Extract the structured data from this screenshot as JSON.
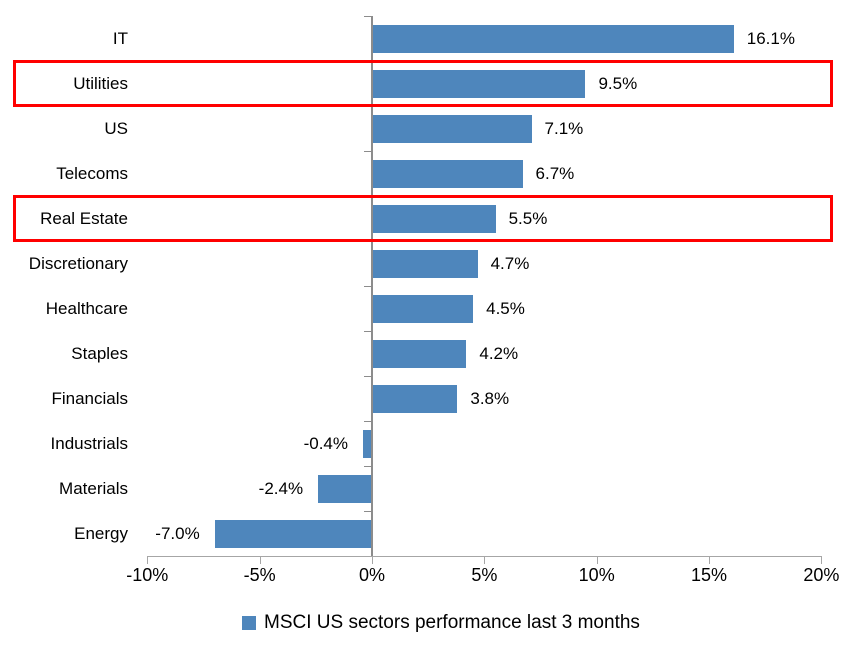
{
  "chart_data": {
    "type": "bar",
    "orientation": "horizontal",
    "title": "",
    "categories": [
      "IT",
      "Utilities",
      "US",
      "Telecoms",
      "Real Estate",
      "Discretionary",
      "Healthcare",
      "Staples",
      "Financials",
      "Industrials",
      "Materials",
      "Energy"
    ],
    "values": [
      16.1,
      9.5,
      7.1,
      6.7,
      5.5,
      4.7,
      4.5,
      4.2,
      3.8,
      -0.4,
      -2.4,
      -7.0
    ],
    "value_labels": [
      "16.1%",
      "9.5%",
      "7.1%",
      "6.7%",
      "5.5%",
      "4.7%",
      "4.5%",
      "4.2%",
      "3.8%",
      "-0.4%",
      "-2.4%",
      "-7.0%"
    ],
    "x_tick_values": [
      -10,
      -5,
      0,
      5,
      10,
      15,
      20
    ],
    "x_tick_labels": [
      "-10%",
      "-5%",
      "0%",
      "5%",
      "10%",
      "15%",
      "20%"
    ],
    "xlim": [
      -10,
      20
    ],
    "grid": false,
    "legend_position": "bottom-center",
    "legend_label": "MSCI US sectors performance last 3 months",
    "highlighted_categories": [
      "Utilities",
      "Real Estate"
    ],
    "colors": {
      "bar": "#4E86BC",
      "highlight_border": "#FF0000",
      "axis_line": "#A6A6A6",
      "zero_line": "#8C8C8C",
      "text": "#000000"
    }
  }
}
